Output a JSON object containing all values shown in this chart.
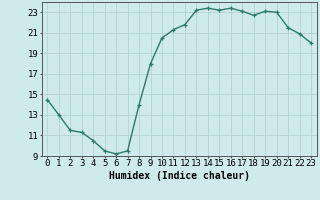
{
  "x": [
    0,
    1,
    2,
    3,
    4,
    5,
    6,
    7,
    8,
    9,
    10,
    11,
    12,
    13,
    14,
    15,
    16,
    17,
    18,
    19,
    20,
    21,
    22,
    23
  ],
  "y": [
    14.5,
    13.0,
    11.5,
    11.3,
    10.5,
    9.5,
    9.2,
    9.5,
    14.0,
    18.0,
    20.5,
    21.3,
    21.8,
    23.2,
    23.4,
    23.2,
    23.4,
    23.1,
    22.7,
    23.1,
    23.0,
    21.5,
    20.9,
    20.0
  ],
  "line_color": "#2d7a6a",
  "marker": "+",
  "marker_size": 3,
  "bg_color": "#ceeaea",
  "grid_color": "#aed0d0",
  "xlabel": "Humidex (Indice chaleur)",
  "ylim": [
    9,
    24
  ],
  "xlim": [
    -0.5,
    23.5
  ],
  "yticks": [
    9,
    11,
    13,
    15,
    17,
    19,
    21,
    23
  ],
  "xticks": [
    0,
    1,
    2,
    3,
    4,
    5,
    6,
    7,
    8,
    9,
    10,
    11,
    12,
    13,
    14,
    15,
    16,
    17,
    18,
    19,
    20,
    21,
    22,
    23
  ],
  "xlabel_fontsize": 7,
  "tick_fontsize": 6.5,
  "line_width": 1.0
}
